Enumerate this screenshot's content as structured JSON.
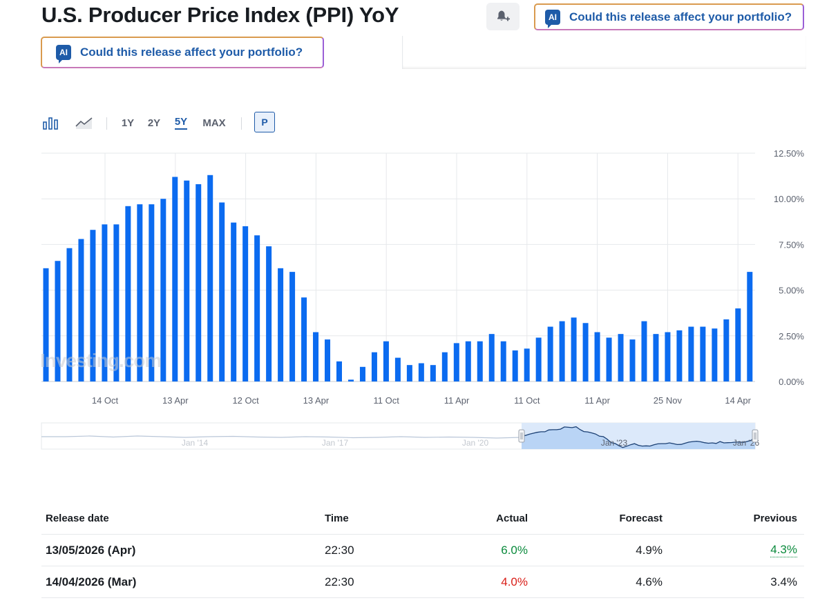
{
  "page": {
    "title": "U.S. Producer Price Index (PPI) YoY",
    "ai_button_label": "Could this release affect your portfolio?",
    "ai_icon_text": "AI"
  },
  "toolbar": {
    "icons": [
      "bar-chart-icon",
      "line-chart-icon"
    ],
    "ranges": [
      {
        "label": "1Y",
        "active": false
      },
      {
        "label": "2Y",
        "active": false
      },
      {
        "label": "5Y",
        "active": true
      },
      {
        "label": "MAX",
        "active": false
      }
    ],
    "p_button": "P"
  },
  "colors": {
    "bar": "#0b6bf0",
    "accent": "#1e5ba8",
    "positive": "#0a8a3c",
    "negative": "#d91e18"
  },
  "chart_data": {
    "type": "bar",
    "ylim": [
      0,
      12.5
    ],
    "y_ticks": [
      "0.00%",
      "2.50%",
      "5.00%",
      "7.50%",
      "10.00%",
      "12.50%"
    ],
    "x_tick_labels": [
      "14 Oct",
      "13 Apr",
      "12 Oct",
      "13 Apr",
      "11 Oct",
      "11 Apr",
      "11 Oct",
      "11 Apr",
      "25 Nov",
      "14 Apr"
    ],
    "watermark": "Investing.com",
    "grid": true,
    "series": [
      {
        "values": [
          6.2,
          6.6,
          7.3,
          7.8,
          8.3,
          8.6,
          8.6,
          9.6,
          9.7,
          9.7,
          10.0,
          11.2,
          11.0,
          10.8,
          11.3,
          9.8,
          8.7,
          8.5,
          8.0,
          7.4,
          6.2,
          6.0,
          4.6,
          2.7,
          2.3,
          1.1,
          0.1,
          0.8,
          1.6,
          2.2,
          1.3,
          0.9,
          1.0,
          0.9,
          1.6,
          2.1,
          2.2,
          2.2,
          2.6,
          2.2,
          1.7,
          1.8,
          2.4,
          3.0,
          3.3,
          3.5,
          3.2,
          2.7,
          2.4,
          2.6,
          2.3,
          3.3,
          2.6,
          2.7,
          2.8,
          3.0,
          3.0,
          2.9,
          3.4,
          4.0,
          6.0
        ]
      }
    ],
    "navigator": {
      "labels": [
        "Jan '14",
        "Jan '17",
        "Jan '20",
        "Jan '23",
        "Jan '26"
      ]
    }
  },
  "table": {
    "headers": {
      "release_date": "Release date",
      "time": "Time",
      "actual": "Actual",
      "forecast": "Forecast",
      "previous": "Previous"
    },
    "rows": [
      {
        "release_date": "13/05/2026 (Apr)",
        "time": "22:30",
        "actual": "6.0%",
        "actual_trend": "up",
        "forecast": "4.9%",
        "previous": "4.3%",
        "previous_trend": "up"
      },
      {
        "release_date": "14/04/2026 (Mar)",
        "time": "22:30",
        "actual": "4.0%",
        "actual_trend": "down",
        "forecast": "4.6%",
        "previous": "3.4%",
        "previous_trend": ""
      }
    ]
  }
}
